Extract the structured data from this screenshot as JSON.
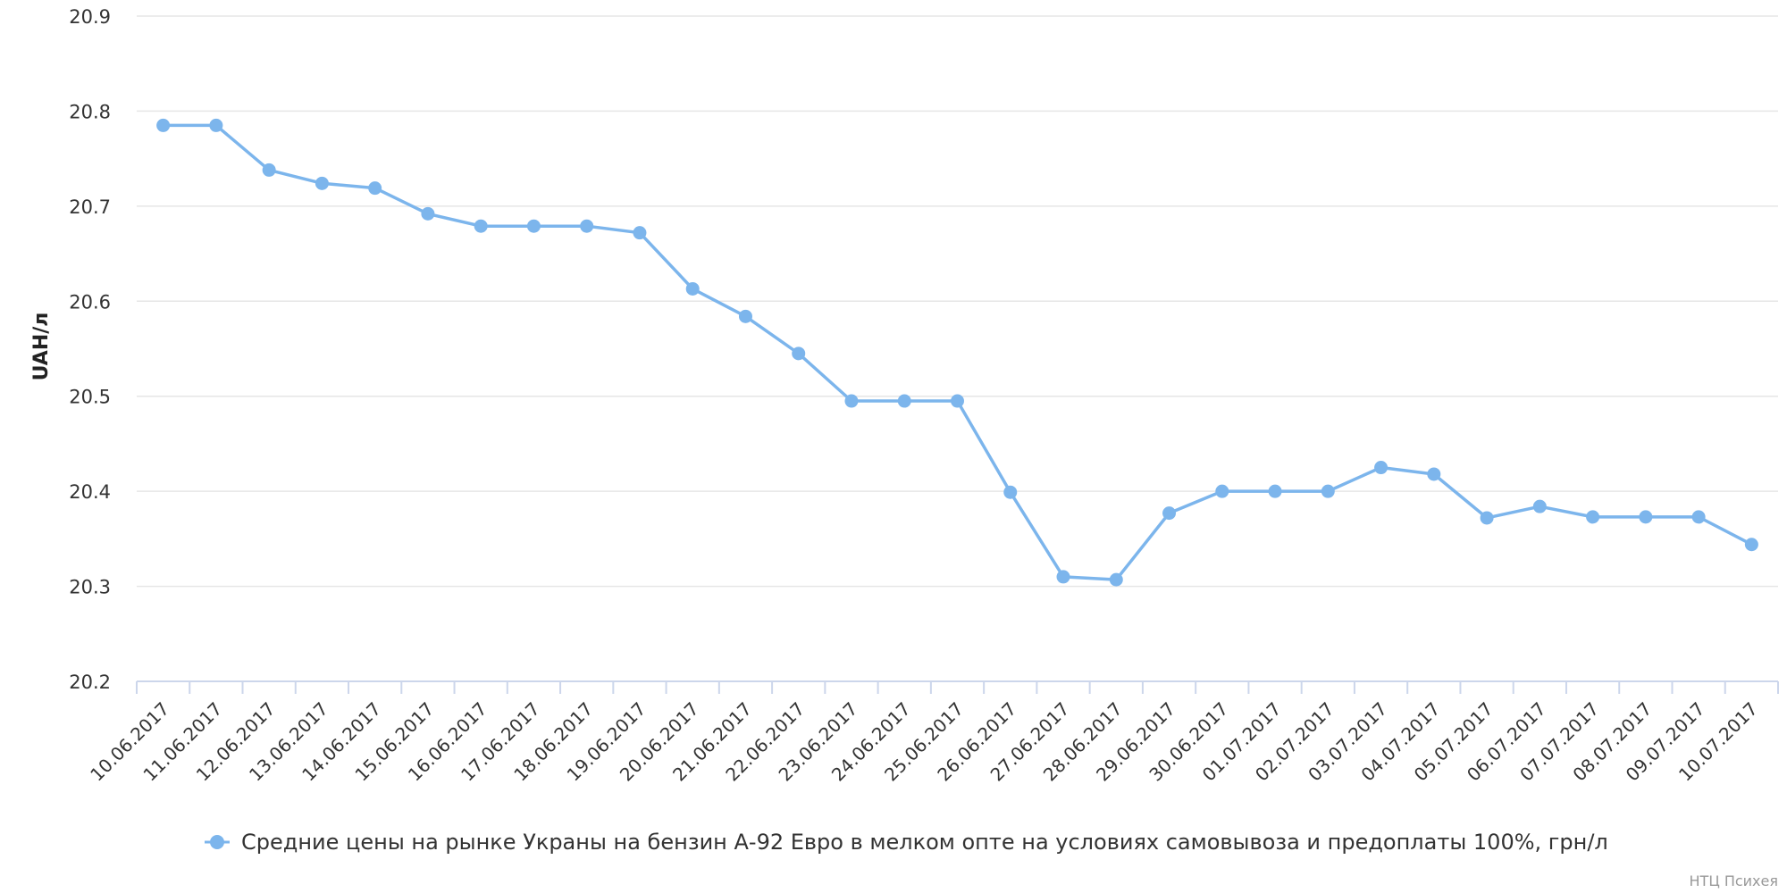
{
  "chart_data": {
    "type": "line",
    "ylabel": "UAH/л",
    "xlabel": "",
    "ylim": [
      20.2,
      20.9
    ],
    "yticks": [
      "20.2",
      "20.3",
      "20.4",
      "20.5",
      "20.6",
      "20.7",
      "20.8",
      "20.9"
    ],
    "grid": true,
    "legend_position": "bottom-center",
    "categories": [
      "10.06.2017",
      "11.06.2017",
      "12.06.2017",
      "13.06.2017",
      "14.06.2017",
      "15.06.2017",
      "16.06.2017",
      "17.06.2017",
      "18.06.2017",
      "19.06.2017",
      "20.06.2017",
      "21.06.2017",
      "22.06.2017",
      "23.06.2017",
      "24.06.2017",
      "25.06.2017",
      "26.06.2017",
      "27.06.2017",
      "28.06.2017",
      "29.06.2017",
      "30.06.2017",
      "01.07.2017",
      "02.07.2017",
      "03.07.2017",
      "04.07.2017",
      "05.07.2017",
      "06.07.2017",
      "07.07.2017",
      "08.07.2017",
      "09.07.2017",
      "10.07.2017"
    ],
    "series": [
      {
        "name": "Средние цены на рынке Украны на бензин А-92 Евро в мелком опте на условиях самовывоза и предоплаты 100%, грн/л",
        "color": "#7cb5ec",
        "values": [
          20.785,
          20.785,
          20.738,
          20.724,
          20.719,
          20.692,
          20.679,
          20.679,
          20.679,
          20.672,
          20.613,
          20.584,
          20.545,
          20.495,
          20.495,
          20.495,
          20.399,
          20.31,
          20.307,
          20.377,
          20.4,
          20.4,
          20.4,
          20.425,
          20.418,
          20.372,
          20.384,
          20.373,
          20.373,
          20.373,
          20.344
        ]
      }
    ]
  },
  "credit": "НТЦ Психея",
  "colors": {
    "grid": "#e6e6e6",
    "axis": "#ccd6eb",
    "series": "#7cb5ec"
  }
}
